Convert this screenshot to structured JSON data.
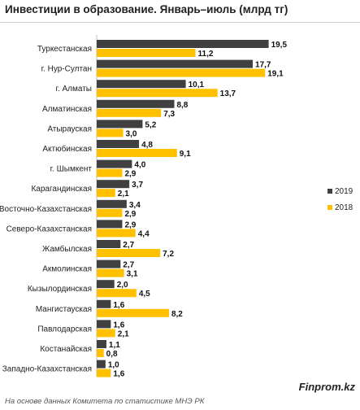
{
  "chart_data": {
    "type": "bar",
    "orientation": "horizontal",
    "title": "Инвестиции в образование. Январь–июль (млрд тг)",
    "categories": [
      "Туркестанская",
      "г. Нур-Султан",
      "г. Алматы",
      "Алматинская",
      "Атырауская",
      "Актюбинская",
      "г. Шымкент",
      "Карагандинская",
      "Восточно-Казахстанская",
      "Северо-Казахстанская",
      "Жамбылская",
      "Акмолинская",
      "Кызылординская",
      "Мангистауская",
      "Павлодарская",
      "Костанайская",
      "Западно-Казахстанская"
    ],
    "series": [
      {
        "name": "2019",
        "color": "#404040",
        "values": [
          19.5,
          17.7,
          10.1,
          8.8,
          5.2,
          4.8,
          4.0,
          3.7,
          3.4,
          2.9,
          2.7,
          2.7,
          2.0,
          1.6,
          1.6,
          1.1,
          1.0
        ],
        "labels": [
          "19,5",
          "17,7",
          "10,1",
          "8,8",
          "5,2",
          "4,8",
          "4,0",
          "3,7",
          "3,4",
          "2,9",
          "2,7",
          "2,7",
          "2,0",
          "1,6",
          "1,6",
          "1,1",
          "1,0"
        ]
      },
      {
        "name": "2018",
        "color": "#FFC000",
        "values": [
          11.2,
          19.1,
          13.7,
          7.3,
          3.0,
          9.1,
          2.9,
          2.1,
          2.9,
          4.4,
          7.2,
          3.1,
          4.5,
          8.2,
          2.1,
          0.8,
          1.6
        ],
        "labels": [
          "11,2",
          "19,1",
          "13,7",
          "7,3",
          "3,0",
          "9,1",
          "2,9",
          "2,1",
          "2,9",
          "4,4",
          "7,2",
          "3,1",
          "4,5",
          "8,2",
          "2,1",
          "0,8",
          "1,6"
        ]
      }
    ],
    "xlim": [
      0,
      20
    ],
    "grid": false,
    "legend_position": "right"
  },
  "brand": "Finprom.kz",
  "source": "На основе данных Комитета по статистике МНЭ РК"
}
